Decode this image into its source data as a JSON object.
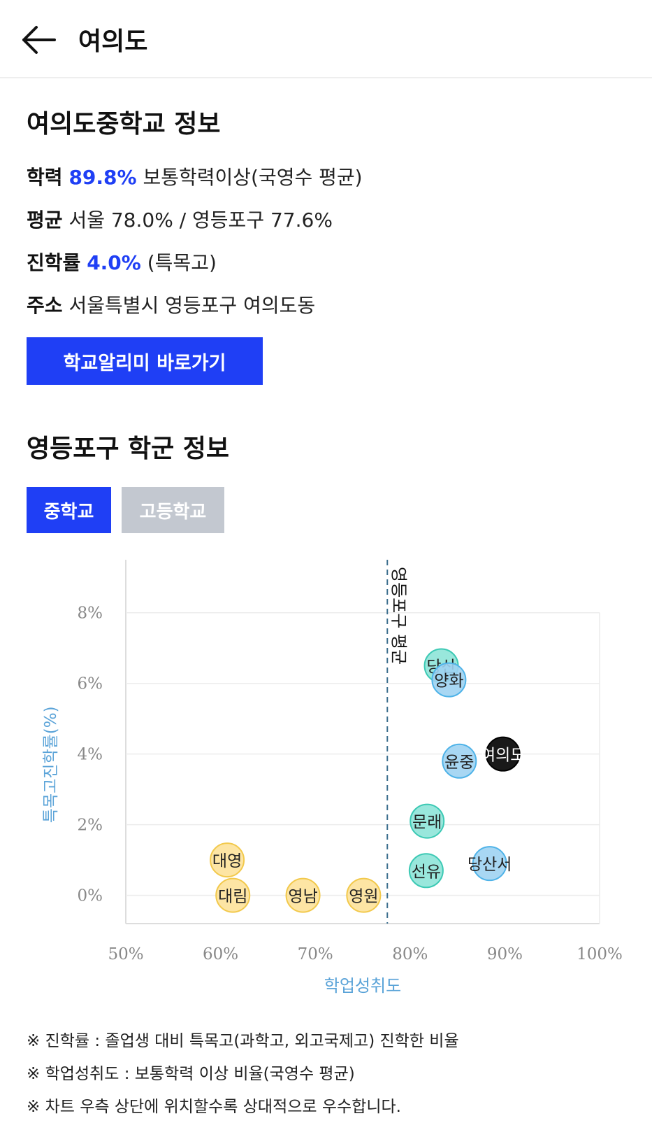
{
  "header": {
    "title": "여의도",
    "back_icon": "arrow-left-icon"
  },
  "school": {
    "title": "여의도중학교 정보",
    "achievement": {
      "label": "학력",
      "value": "89.8%",
      "suffix": "보통학력이상(국영수 평균)"
    },
    "average": {
      "label": "평균",
      "text": "서울 78.0% / 영등포구 77.6%"
    },
    "advance": {
      "label": "진학률",
      "value": "4.0%",
      "suffix": "(특목고)"
    },
    "address": {
      "label": "주소",
      "text": "서울특별시 영등포구 여의도동"
    },
    "button_label": "학교알리미 바로가기"
  },
  "district": {
    "title": "영등포구 학군 정보",
    "tabs": [
      {
        "label": "중학교",
        "active": true
      },
      {
        "label": "고등학교",
        "active": false
      }
    ]
  },
  "colors": {
    "accent": "#1f3ff5",
    "tab_inactive": "#c3c8d0",
    "axis_label": "#5aa3d8",
    "yellow_fill": "#fde29a",
    "yellow_stroke": "#f2c94c",
    "teal_fill": "#8ee4d8",
    "teal_stroke": "#3cc9b4",
    "blue_fill": "#9fd3f2",
    "blue_stroke": "#4fb3e8",
    "highlight": "#000000"
  },
  "chart_data": {
    "type": "scatter",
    "xlabel": "학업성취도",
    "ylabel": "특목고진학률(%)",
    "xlim": [
      50,
      100
    ],
    "ylim": [
      -0.8,
      9.5
    ],
    "x_ticks": [
      "50%",
      "60%",
      "70%",
      "80%",
      "90%",
      "100%"
    ],
    "x_tick_values": [
      50,
      60,
      70,
      80,
      90,
      100
    ],
    "y_ticks": [
      "0%",
      "2%",
      "4%",
      "6%",
      "8%"
    ],
    "y_tick_values": [
      0,
      2,
      4,
      6,
      8
    ],
    "grid": true,
    "reference_line": {
      "x": 77.6,
      "label": "영등포구 평균"
    },
    "points": [
      {
        "name": "대영",
        "x": 60.7,
        "y": 1.0,
        "group": "yellow"
      },
      {
        "name": "대림",
        "x": 61.3,
        "y": 0.0,
        "group": "yellow"
      },
      {
        "name": "영남",
        "x": 68.7,
        "y": 0.0,
        "group": "yellow"
      },
      {
        "name": "영원",
        "x": 75.1,
        "y": 0.0,
        "group": "yellow"
      },
      {
        "name": "당산",
        "x": 83.3,
        "y": 6.5,
        "group": "teal"
      },
      {
        "name": "양화",
        "x": 84.1,
        "y": 6.1,
        "group": "blue"
      },
      {
        "name": "윤중",
        "x": 85.2,
        "y": 3.8,
        "group": "blue"
      },
      {
        "name": "문래",
        "x": 81.8,
        "y": 2.1,
        "group": "teal"
      },
      {
        "name": "선유",
        "x": 81.7,
        "y": 0.7,
        "group": "teal"
      },
      {
        "name": "당산서",
        "x": 88.4,
        "y": 0.9,
        "group": "blue"
      },
      {
        "name": "여의도",
        "x": 89.8,
        "y": 4.0,
        "group": "highlight"
      }
    ]
  },
  "notes": [
    "※ 진학률 : 졸업생 대비 특목고(과학고, 외고국제고) 진학한 비율",
    "※ 학업성취도 : 보통학력 이상 비율(국영수 평균)",
    "※ 차트 우측 상단에 위치할수록 상대적으로 우수합니다."
  ]
}
